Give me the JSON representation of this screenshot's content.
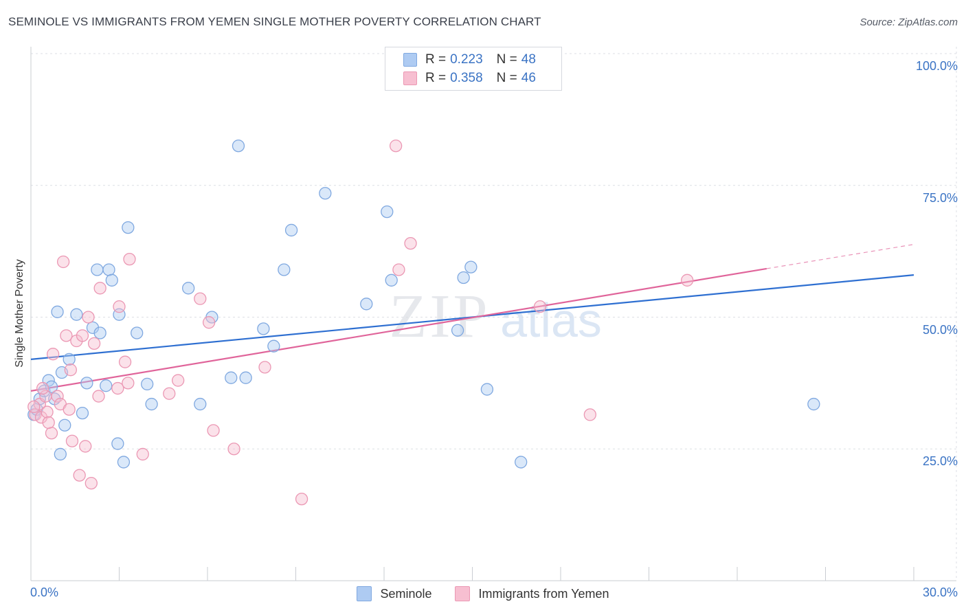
{
  "header": {
    "title": "SEMINOLE VS IMMIGRANTS FROM YEMEN SINGLE MOTHER POVERTY CORRELATION CHART",
    "source": "Source: ZipAtlas.com"
  },
  "legend": {
    "rows": [
      {
        "r_label": "R =",
        "r_value": "0.223",
        "n_label": "N =",
        "n_value": "48"
      },
      {
        "r_label": "R =",
        "r_value": "0.358",
        "n_label": "N =",
        "n_value": "46"
      }
    ]
  },
  "bottom_legend": [
    "Seminole",
    "Immigrants from Yemen"
  ],
  "watermark": {
    "zip": "ZIP",
    "atlas": "atlas"
  },
  "colors": {
    "blue_fill": "#aecbf2",
    "blue_stroke": "#7fa8e0",
    "blue_line": "#2e6fd1",
    "pink_fill": "#f7bfd1",
    "pink_stroke": "#eb97b3",
    "pink_line": "#e0649a",
    "tick_text": "#3a73c4",
    "grid": "#dcdfe4"
  },
  "chart_data": {
    "type": "scatter",
    "title": "SEMINOLE VS IMMIGRANTS FROM YEMEN SINGLE MOTHER POVERTY CORRELATION CHART",
    "xlabel": "",
    "ylabel": "Single Mother Poverty",
    "xlim": [
      0,
      30
    ],
    "ylim": [
      0,
      100
    ],
    "x_tick_labels": [
      "0.0%",
      "30.0%"
    ],
    "y_ticks": [
      25,
      50,
      75,
      100
    ],
    "y_tick_labels": [
      "25.0%",
      "50.0%",
      "75.0%",
      "100.0%"
    ],
    "series": [
      {
        "name": "Seminole",
        "r": 0.223,
        "n": 48,
        "trend": {
          "x0": 0,
          "y0": 42.0,
          "x1": 30,
          "y1": 58.0
        },
        "points": [
          [
            0.1,
            31.5
          ],
          [
            0.2,
            32.5
          ],
          [
            0.3,
            34.5
          ],
          [
            0.45,
            36.0
          ],
          [
            0.6,
            38.0
          ],
          [
            0.7,
            36.8
          ],
          [
            0.8,
            34.5
          ],
          [
            0.9,
            51.0
          ],
          [
            1.05,
            39.5
          ],
          [
            1.15,
            29.5
          ],
          [
            1.3,
            42.0
          ],
          [
            1.55,
            50.5
          ],
          [
            1.75,
            31.8
          ],
          [
            1.9,
            37.5
          ],
          [
            2.1,
            48.0
          ],
          [
            2.25,
            59.0
          ],
          [
            2.35,
            47.0
          ],
          [
            2.55,
            37.0
          ],
          [
            2.65,
            59.0
          ],
          [
            2.75,
            57.0
          ],
          [
            2.95,
            26.0
          ],
          [
            3.0,
            50.5
          ],
          [
            3.15,
            22.5
          ],
          [
            3.3,
            67.0
          ],
          [
            3.6,
            47.0
          ],
          [
            3.95,
            37.3
          ],
          [
            4.1,
            33.5
          ],
          [
            5.35,
            55.5
          ],
          [
            5.75,
            33.5
          ],
          [
            6.15,
            50.0
          ],
          [
            6.8,
            38.5
          ],
          [
            7.05,
            82.5
          ],
          [
            7.3,
            38.5
          ],
          [
            7.9,
            47.8
          ],
          [
            8.25,
            44.5
          ],
          [
            8.6,
            59.0
          ],
          [
            8.85,
            66.5
          ],
          [
            10.0,
            73.5
          ],
          [
            11.4,
            52.5
          ],
          [
            12.1,
            70.0
          ],
          [
            12.25,
            57.0
          ],
          [
            14.5,
            47.5
          ],
          [
            14.7,
            57.5
          ],
          [
            14.95,
            59.5
          ],
          [
            15.5,
            36.3
          ],
          [
            16.65,
            22.5
          ],
          [
            26.6,
            33.5
          ],
          [
            1.0,
            24.0
          ]
        ]
      },
      {
        "name": "Immigrants from Yemen",
        "r": 0.358,
        "n": 46,
        "trend": {
          "x0": 0,
          "y0": 36.0,
          "x1": 25.0,
          "y1": 59.2,
          "dash_to_x": 30,
          "dash_to_y": 63.8
        },
        "points": [
          [
            0.15,
            31.5
          ],
          [
            0.3,
            33.5
          ],
          [
            0.35,
            31.0
          ],
          [
            0.5,
            35.0
          ],
          [
            0.55,
            32.0
          ],
          [
            0.7,
            28.0
          ],
          [
            0.75,
            43.0
          ],
          [
            0.9,
            35.0
          ],
          [
            1.0,
            33.5
          ],
          [
            1.1,
            60.5
          ],
          [
            1.2,
            46.5
          ],
          [
            1.35,
            40.0
          ],
          [
            1.4,
            26.5
          ],
          [
            1.55,
            45.5
          ],
          [
            1.65,
            20.0
          ],
          [
            1.75,
            46.5
          ],
          [
            1.85,
            25.5
          ],
          [
            1.95,
            50.0
          ],
          [
            2.05,
            18.5
          ],
          [
            2.15,
            45.0
          ],
          [
            2.3,
            35.0
          ],
          [
            2.35,
            55.5
          ],
          [
            2.95,
            36.5
          ],
          [
            3.0,
            52.0
          ],
          [
            3.2,
            41.5
          ],
          [
            3.3,
            37.5
          ],
          [
            3.35,
            61.0
          ],
          [
            3.8,
            24.0
          ],
          [
            4.7,
            35.5
          ],
          [
            5.0,
            38.0
          ],
          [
            5.75,
            53.5
          ],
          [
            6.05,
            49.0
          ],
          [
            6.2,
            28.5
          ],
          [
            6.9,
            25.0
          ],
          [
            7.95,
            40.5
          ],
          [
            9.2,
            15.5
          ],
          [
            12.4,
            82.5
          ],
          [
            12.5,
            59.0
          ],
          [
            12.9,
            64.0
          ],
          [
            17.3,
            52.0
          ],
          [
            19.0,
            31.5
          ],
          [
            22.3,
            57.0
          ],
          [
            0.1,
            33.0
          ],
          [
            0.4,
            36.5
          ],
          [
            1.3,
            32.5
          ],
          [
            0.6,
            30.0
          ]
        ]
      }
    ]
  }
}
